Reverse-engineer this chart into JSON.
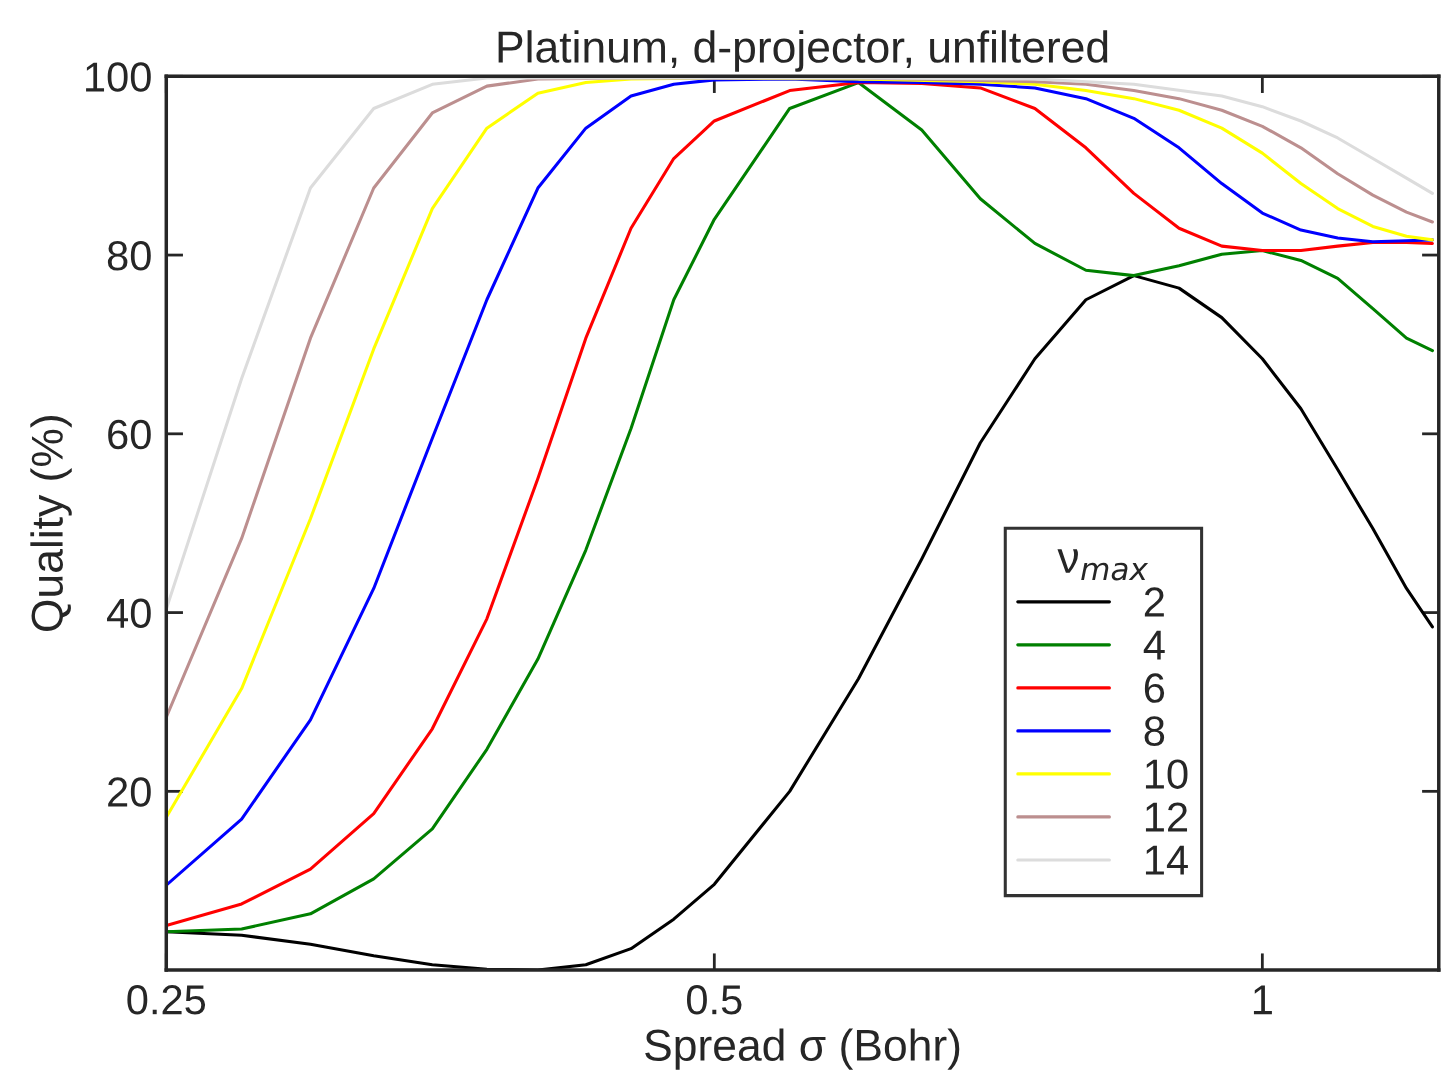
{
  "chart_data": {
    "type": "line",
    "title": "Platinum, d-projector, unfiltered",
    "xlabel": "Spread σ (Bohr)",
    "ylabel": "Quality (%)",
    "legend_title": "ν$_{max}$",
    "log": "x",
    "xlim": [
      0.25,
      1.25
    ],
    "xticks": [
      0.25,
      0.5,
      1
    ],
    "ylim": [
      0,
      100
    ],
    "yticks": [
      20,
      40,
      60,
      80,
      100
    ],
    "grid": false,
    "legend": "lower right",
    "marker": "none",
    "line_style": "solid",
    "series": [
      {
        "name": "2",
        "color": "#000000",
        "x": [
          0.25,
          0.275,
          0.3,
          0.325,
          0.35,
          0.375,
          0.4,
          0.425,
          0.45,
          0.475,
          0.5,
          0.55,
          0.6,
          0.65,
          0.7,
          0.75,
          0.8,
          0.85,
          0.9,
          0.95,
          1.0,
          1.05,
          1.1,
          1.15,
          1.2,
          1.24
        ],
        "values": [
          4.3,
          3.9,
          2.9,
          1.6,
          0.6,
          0.1,
          0,
          0.6,
          2.4,
          5.7,
          9.6,
          20,
          32.6,
          46,
          59,
          68.4,
          75,
          77.7,
          76.3,
          73,
          68.4,
          62.8,
          56,
          49.4,
          42.7,
          38.4
        ]
      },
      {
        "name": "4",
        "color": "#008000",
        "x": [
          0.25,
          0.275,
          0.3,
          0.325,
          0.35,
          0.375,
          0.4,
          0.425,
          0.45,
          0.475,
          0.5,
          0.55,
          0.6,
          0.65,
          0.7,
          0.75,
          0.8,
          0.85,
          0.9,
          0.95,
          1.0,
          1.05,
          1.1,
          1.15,
          1.2,
          1.24
        ],
        "values": [
          4.3,
          4.6,
          6.3,
          10.2,
          15.8,
          24.7,
          34.8,
          47,
          60.6,
          75,
          84,
          96.4,
          99.3,
          94,
          86.3,
          81.3,
          78.3,
          77.7,
          78.8,
          80.1,
          80.5,
          79.4,
          77.4,
          74,
          70.7,
          69.3
        ]
      },
      {
        "name": "6",
        "color": "#ff0000",
        "x": [
          0.25,
          0.275,
          0.3,
          0.325,
          0.35,
          0.375,
          0.4,
          0.425,
          0.45,
          0.475,
          0.5,
          0.55,
          0.6,
          0.65,
          0.7,
          0.75,
          0.8,
          0.85,
          0.9,
          0.95,
          1.0,
          1.05,
          1.1,
          1.15,
          1.2,
          1.24
        ],
        "values": [
          5,
          7.4,
          11.3,
          17.5,
          27,
          39.3,
          55,
          70.7,
          83,
          90.8,
          95,
          98.4,
          99.3,
          99.2,
          98.7,
          96.4,
          92,
          86.9,
          83,
          81,
          80.5,
          80.5,
          81,
          81.4,
          81.4,
          81.3
        ]
      },
      {
        "name": "8",
        "color": "#0000ff",
        "x": [
          0.25,
          0.275,
          0.3,
          0.325,
          0.35,
          0.375,
          0.4,
          0.425,
          0.45,
          0.475,
          0.5,
          0.55,
          0.6,
          0.65,
          0.7,
          0.75,
          0.8,
          0.85,
          0.9,
          0.95,
          1.0,
          1.05,
          1.1,
          1.15,
          1.2,
          1.24
        ],
        "values": [
          9.5,
          16.9,
          28,
          42.7,
          59.5,
          75,
          87.5,
          94.2,
          97.8,
          99.1,
          99.6,
          99.7,
          99.4,
          99.3,
          99.1,
          98.7,
          97.5,
          95.3,
          92,
          88,
          84.7,
          82.8,
          81.9,
          81.5,
          81.6,
          81.7
        ]
      },
      {
        "name": "10",
        "color": "#ffff00",
        "x": [
          0.25,
          0.275,
          0.3,
          0.325,
          0.35,
          0.375,
          0.4,
          0.425,
          0.45,
          0.5,
          0.6,
          0.7,
          0.75,
          0.8,
          0.85,
          0.9,
          0.95,
          1.0,
          1.05,
          1.1,
          1.15,
          1.2,
          1.24
        ],
        "values": [
          17.1,
          31.5,
          50.5,
          69.5,
          85.2,
          94.2,
          98.1,
          99.3,
          99.7,
          99.8,
          99.7,
          99.4,
          99.1,
          98.4,
          97.5,
          96.2,
          94.2,
          91.4,
          88,
          85.2,
          83.2,
          82.1,
          81.7
        ]
      },
      {
        "name": "12",
        "color": "#bc8f8f",
        "x": [
          0.25,
          0.275,
          0.3,
          0.325,
          0.35,
          0.375,
          0.4,
          0.45,
          0.6,
          0.75,
          0.8,
          0.85,
          0.9,
          0.95,
          1.0,
          1.05,
          1.1,
          1.15,
          1.2,
          1.24
        ],
        "values": [
          28.3,
          48.3,
          70.7,
          87.5,
          95.9,
          98.9,
          99.7,
          99.8,
          99.8,
          99.4,
          99.1,
          98.4,
          97.5,
          96.2,
          94.4,
          92,
          89.1,
          86.7,
          84.8,
          83.7
        ]
      },
      {
        "name": "14",
        "color": "#dcdcdc",
        "x": [
          0.25,
          0.275,
          0.3,
          0.325,
          0.35,
          0.375,
          0.6,
          0.75,
          0.85,
          0.95,
          1.0,
          1.05,
          1.1,
          1.15,
          1.2,
          1.24
        ],
        "values": [
          40.4,
          66.2,
          87.5,
          96.4,
          99.1,
          99.8,
          99.8,
          99.7,
          99.1,
          97.8,
          96.6,
          95,
          93.1,
          90.8,
          88.6,
          86.9
        ]
      }
    ]
  }
}
